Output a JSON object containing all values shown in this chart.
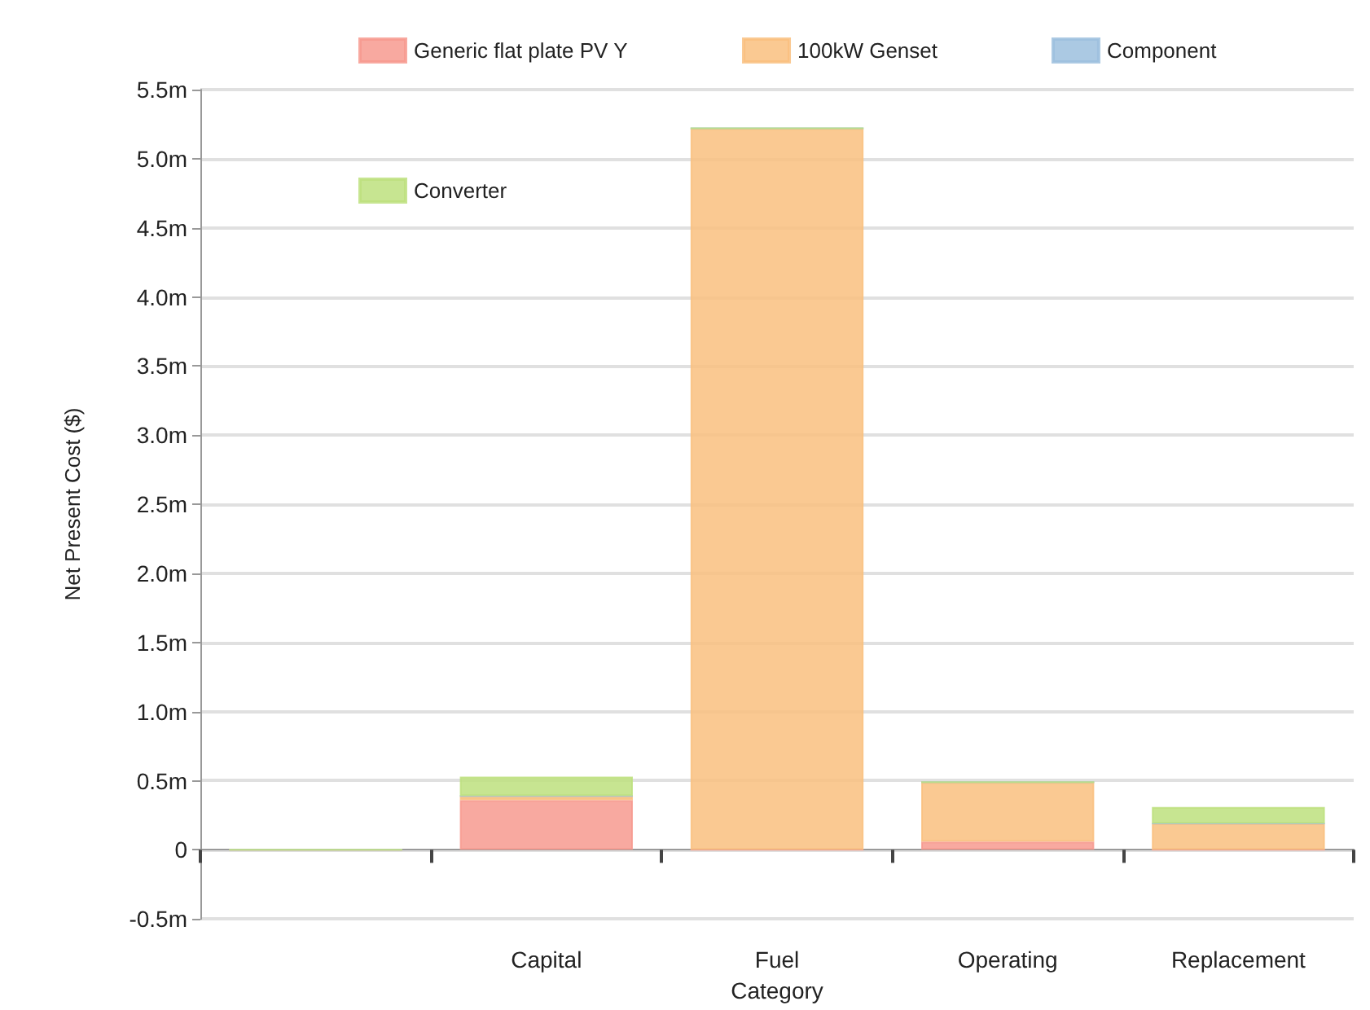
{
  "chart_data": {
    "type": "bar",
    "stacked": true,
    "xlabel": "Category",
    "ylabel": "Net Present Cost ($)",
    "categories": [
      null,
      "Capital",
      "Fuel",
      "Operating",
      "Replacement"
    ],
    "series": [
      {
        "name": "Generic flat plate PV Y",
        "color": "#f79a8f",
        "values": [
          0,
          0.36,
          0,
          0.06,
          0
        ]
      },
      {
        "name": "100kW Genset",
        "color": "#f9c07f",
        "values": [
          0,
          0.03,
          5.22,
          0.43,
          0.19
        ]
      },
      {
        "name": "Component",
        "color": "#9cc0de",
        "values": [
          0,
          0,
          0,
          0,
          0
        ]
      },
      {
        "name": "Converter",
        "color": "#bde07e",
        "values": [
          0,
          0.14,
          0,
          0,
          0.12
        ]
      }
    ],
    "ylim": [
      -0.5,
      5.5
    ],
    "yticks": [
      {
        "value": -0.5,
        "label": "-0.5m"
      },
      {
        "value": 0,
        "label": "0"
      },
      {
        "value": 0.5,
        "label": "0.5m"
      },
      {
        "value": 1,
        "label": "1.0m"
      },
      {
        "value": 1.5,
        "label": "1.5m"
      },
      {
        "value": 2,
        "label": "2.0m"
      },
      {
        "value": 2.5,
        "label": "2.5m"
      },
      {
        "value": 3,
        "label": "3.0m"
      },
      {
        "value": 3.5,
        "label": "3.5m"
      },
      {
        "value": 4,
        "label": "4.0m"
      },
      {
        "value": 4.5,
        "label": "4.5m"
      },
      {
        "value": 5,
        "label": "5.0m"
      },
      {
        "value": 5.5,
        "label": "5.5m"
      }
    ],
    "grid": "y",
    "legend": "top"
  }
}
